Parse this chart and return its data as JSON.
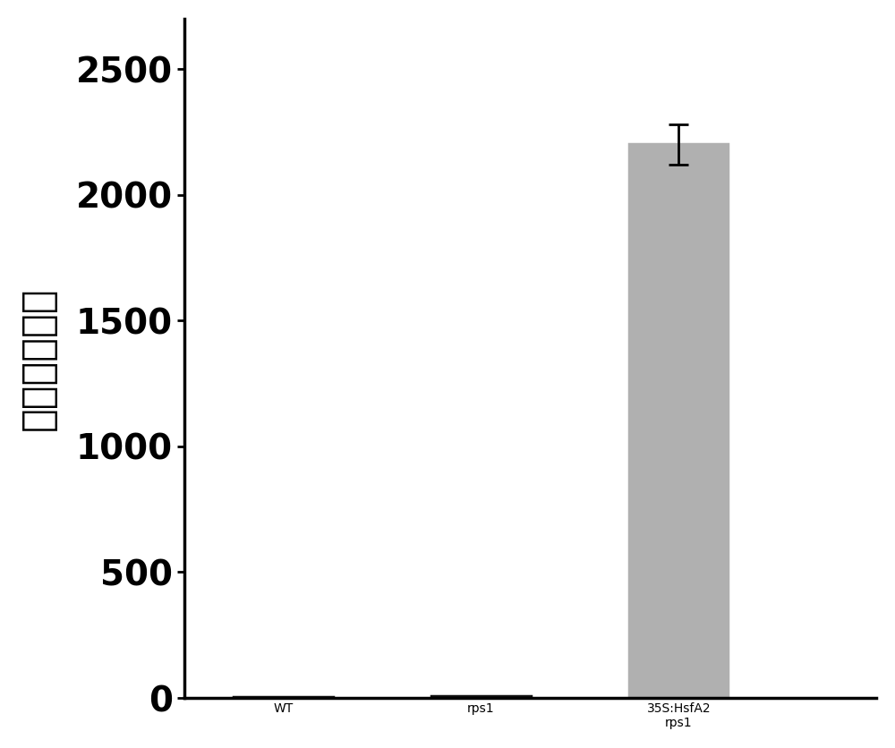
{
  "categories": [
    "WT",
    "rps1",
    "35S:HsfA2\nrps1"
  ],
  "values": [
    5,
    8,
    2200
  ],
  "errors": [
    2,
    2,
    80
  ],
  "bar_color": "#c0c0c0",
  "bar_edgecolor": "#000000",
  "ylabel": "相对转录水平",
  "ylim": [
    0,
    2700
  ],
  "yticks": [
    0,
    500,
    1000,
    1500,
    2000,
    2500
  ],
  "bar_width": 0.5,
  "background_color": "#ffffff",
  "tick_label_fontsize": 28,
  "ylabel_fontsize": 32,
  "xticklabel_rotation": 45,
  "xticklabel_fontsize": 28
}
